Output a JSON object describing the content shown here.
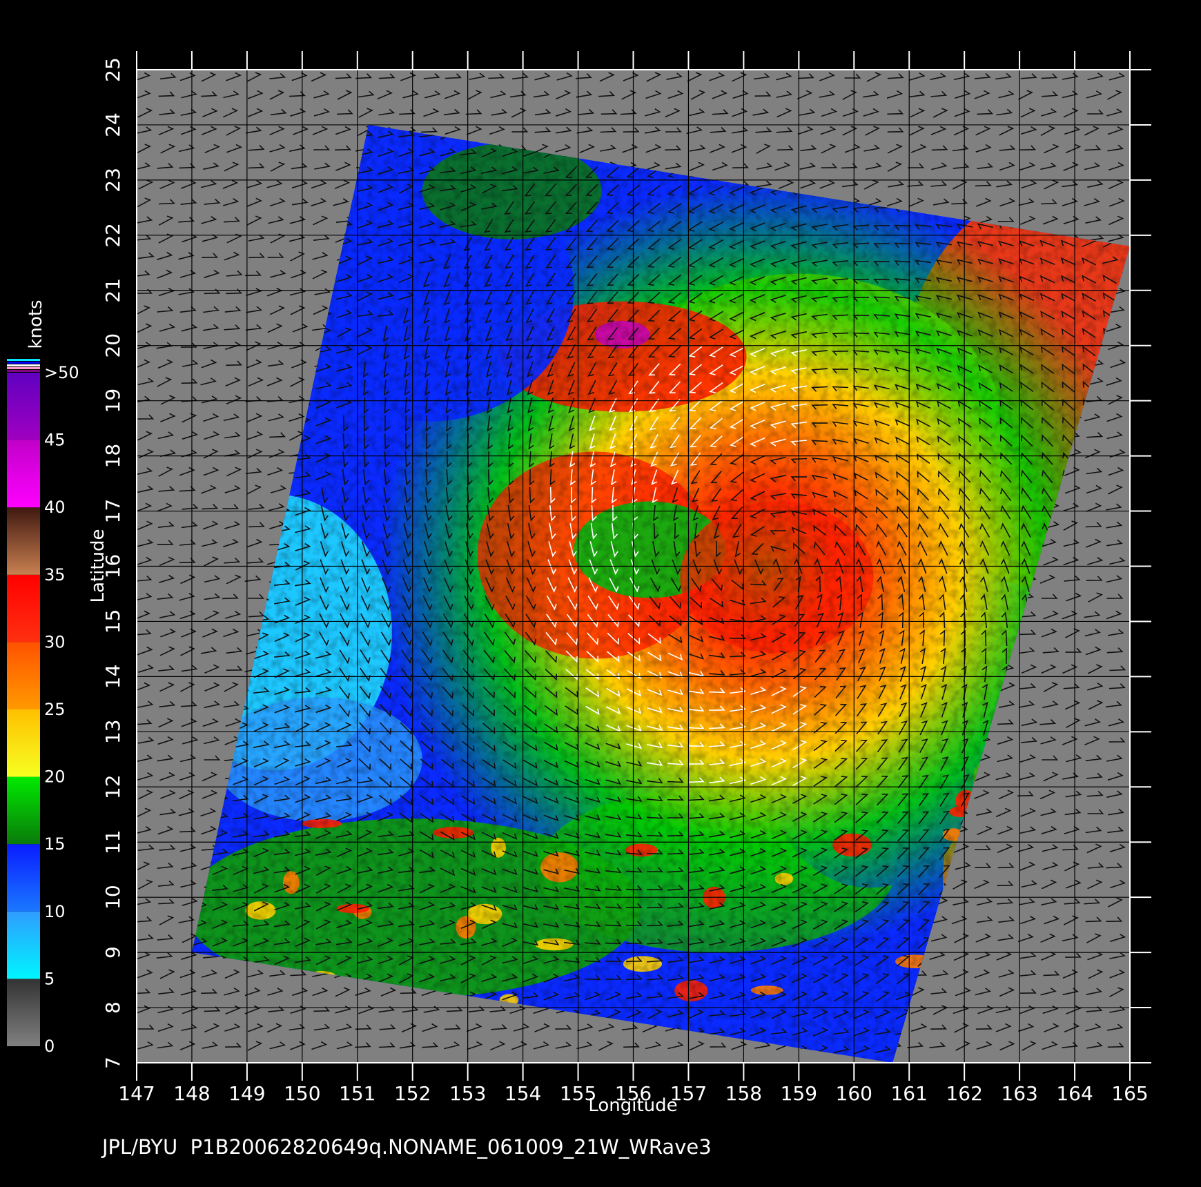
{
  "map": {
    "x_axis_title": "Longitude",
    "y_axis_title": "Latitude",
    "lon_range": [
      147,
      165
    ],
    "lat_range": [
      7,
      25
    ],
    "lon_ticks": [
      "147",
      "148",
      "149",
      "150",
      "151",
      "152",
      "153",
      "154",
      "155",
      "156",
      "157",
      "158",
      "159",
      "160",
      "161",
      "162",
      "163",
      "164",
      "165"
    ],
    "lat_ticks": [
      "7",
      "8",
      "9",
      "10",
      "11",
      "12",
      "13",
      "14",
      "15",
      "16",
      "17",
      "18",
      "19",
      "20",
      "21",
      "22",
      "23",
      "24",
      "25"
    ],
    "storm_center": [
      158.4,
      16.0
    ],
    "swath_corners_lonlat": [
      [
        151.2,
        24.0
      ],
      [
        165.0,
        21.8
      ],
      [
        160.7,
        7.0
      ],
      [
        148.0,
        9.0
      ]
    ],
    "land_color": "#808080",
    "background_color": "#000000"
  },
  "colorbar": {
    "unit": "knots",
    "labels": [
      ">50",
      "45",
      "40",
      "35",
      "30",
      "25",
      "20",
      "15",
      "10",
      "5",
      "0"
    ],
    "bands": [
      {
        "from": 0,
        "to": 5,
        "colors": [
          "#808080",
          "#333333"
        ]
      },
      {
        "from": 5,
        "to": 10,
        "colors": [
          "#00f5ff",
          "#2f9cff"
        ]
      },
      {
        "from": 10,
        "to": 15,
        "colors": [
          "#1a78ff",
          "#0a1cff"
        ]
      },
      {
        "from": 15,
        "to": 20,
        "colors": [
          "#0a7a0a",
          "#00ea00"
        ]
      },
      {
        "from": 20,
        "to": 25,
        "colors": [
          "#f6ff20",
          "#ffc000"
        ]
      },
      {
        "from": 25,
        "to": 30,
        "colors": [
          "#ff9a00",
          "#ff5200"
        ]
      },
      {
        "from": 30,
        "to": 35,
        "colors": [
          "#ff3010",
          "#ff0000"
        ]
      },
      {
        "from": 35,
        "to": 40,
        "colors": [
          "#c88050",
          "#401810"
        ]
      },
      {
        "from": 40,
        "to": 45,
        "colors": [
          "#ff00ff",
          "#c000c8"
        ]
      },
      {
        "from": 45,
        "to": 50,
        "colors": [
          "#a000c0",
          "#6000c0"
        ]
      }
    ]
  },
  "footer": {
    "text": "JPL/BYU  P1B20062820649q.NONAME_061009_21W_WRave3"
  }
}
